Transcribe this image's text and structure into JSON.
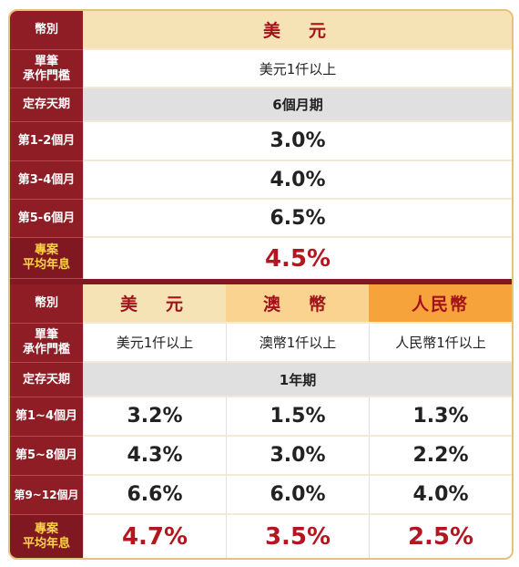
{
  "t1": {
    "currency_label": "幣別",
    "currency": "美　元",
    "threshold_label": "單筆承作門檻",
    "threshold_l1": "單筆",
    "threshold_l2": "承作門檻",
    "threshold": "美元1仟以上",
    "term_label": "定存天期",
    "term": "6個月期",
    "rows": [
      {
        "label": "第1-2個月",
        "value": "3.0%"
      },
      {
        "label": "第3-4個月",
        "value": "4.0%"
      },
      {
        "label": "第5-6個月",
        "value": "6.5%"
      }
    ],
    "avg_label_l1": "專案",
    "avg_label_l2": "平均年息",
    "avg": "4.5%"
  },
  "t2": {
    "currency_label": "幣別",
    "currencies": [
      {
        "name": "美　元",
        "bg": "#f5e3b5"
      },
      {
        "name": "澳　幣",
        "bg": "#fbd391"
      },
      {
        "name": "人民幣",
        "bg": "#f6a33c"
      }
    ],
    "threshold_l1": "單筆",
    "threshold_l2": "承作門檻",
    "thresholds": [
      "美元1仟以上",
      "澳幣1仟以上",
      "人民幣1仟以上"
    ],
    "term_label": "定存天期",
    "term": "1年期",
    "rows": [
      {
        "label": "第1~4個月",
        "values": [
          "3.2%",
          "1.5%",
          "1.3%"
        ]
      },
      {
        "label": "第5~8個月",
        "values": [
          "4.3%",
          "3.0%",
          "2.2%"
        ]
      },
      {
        "label": "第9~12個月",
        "values": [
          "6.6%",
          "6.0%",
          "4.0%"
        ]
      }
    ],
    "avg_label_l1": "專案",
    "avg_label_l2": "平均年息",
    "avgs": [
      "4.7%",
      "3.5%",
      "2.5%"
    ]
  },
  "colors": {
    "label_bg": "#8f1d25",
    "accent_red": "#b3161f",
    "highlight_label": "#ffd24a",
    "border": "#e6c17a"
  }
}
